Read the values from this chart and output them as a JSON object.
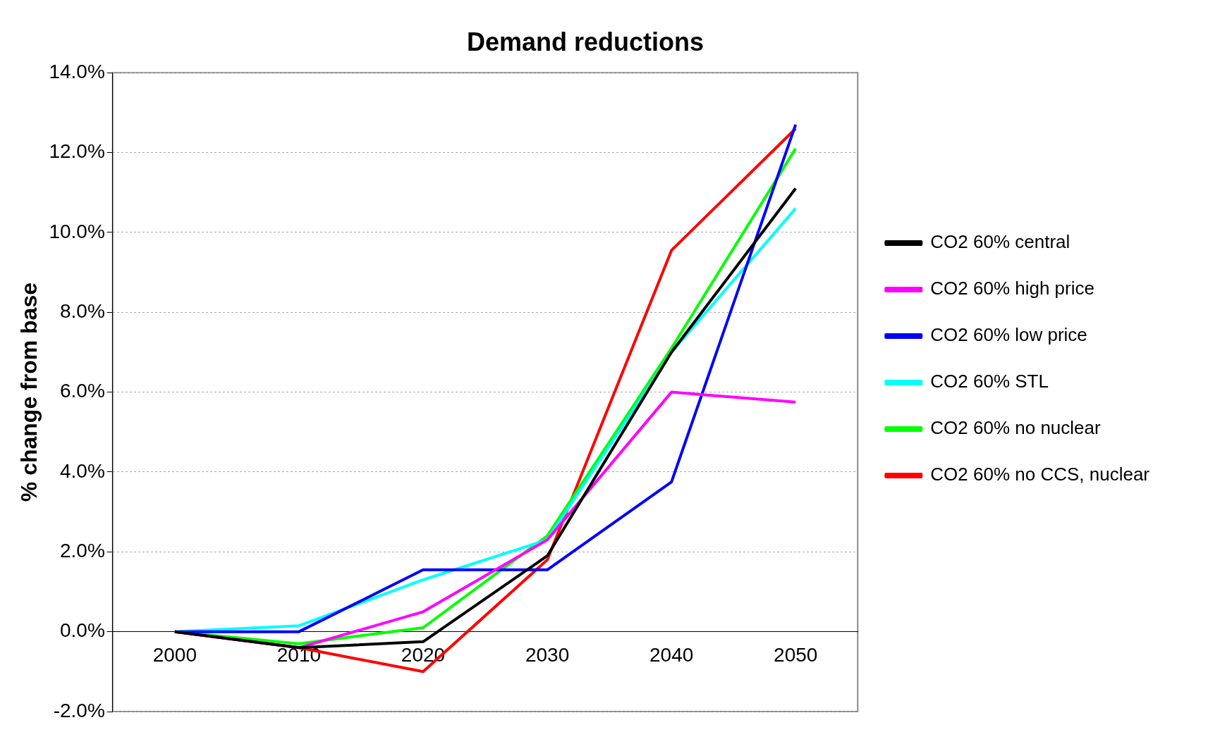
{
  "chart_data": {
    "type": "line",
    "title": "Demand reductions",
    "ylabel": "% change from base",
    "categories": [
      "2000",
      "2010",
      "2020",
      "2030",
      "2040",
      "2050"
    ],
    "series": [
      {
        "name": "CO2 60% central",
        "color": "#000000",
        "values": [
          0,
          -0.4,
          -0.25,
          1.9,
          7.0,
          11.1
        ]
      },
      {
        "name": "CO2 60% high price",
        "color": "#ff00ff",
        "values": [
          0,
          -0.4,
          0.5,
          2.3,
          6.0,
          5.75
        ]
      },
      {
        "name": "CO2 60% low price",
        "color": "#0000ff",
        "values": [
          0,
          0.0,
          1.55,
          1.55,
          3.75,
          12.7
        ]
      },
      {
        "name": "CO2 60% STL",
        "color": "#00ffff",
        "values": [
          0,
          0.15,
          1.3,
          2.3,
          7.0,
          10.6
        ]
      },
      {
        "name": "CO2 60% no nuclear",
        "color": "#00ff00",
        "values": [
          0,
          -0.3,
          0.1,
          2.4,
          7.1,
          12.1
        ]
      },
      {
        "name": "CO2 60% no CCS, nuclear",
        "color": "#ff0000",
        "values": [
          0,
          -0.4,
          -1.0,
          1.8,
          9.55,
          12.6
        ]
      }
    ],
    "ylim": [
      -2,
      14
    ],
    "yticks": [
      {
        "value": -2,
        "label": "-2.0%"
      },
      {
        "value": 0,
        "label": "0.0%"
      },
      {
        "value": 2,
        "label": "2.0%"
      },
      {
        "value": 4,
        "label": "4.0%"
      },
      {
        "value": 6,
        "label": "6.0%"
      },
      {
        "value": 8,
        "label": "8.0%"
      },
      {
        "value": 10,
        "label": "10.0%"
      },
      {
        "value": 12,
        "label": "12.0%"
      },
      {
        "value": 14,
        "label": "14.0%"
      }
    ],
    "grid": "y",
    "legend": "right",
    "marker": "none",
    "line_style": "solid"
  }
}
